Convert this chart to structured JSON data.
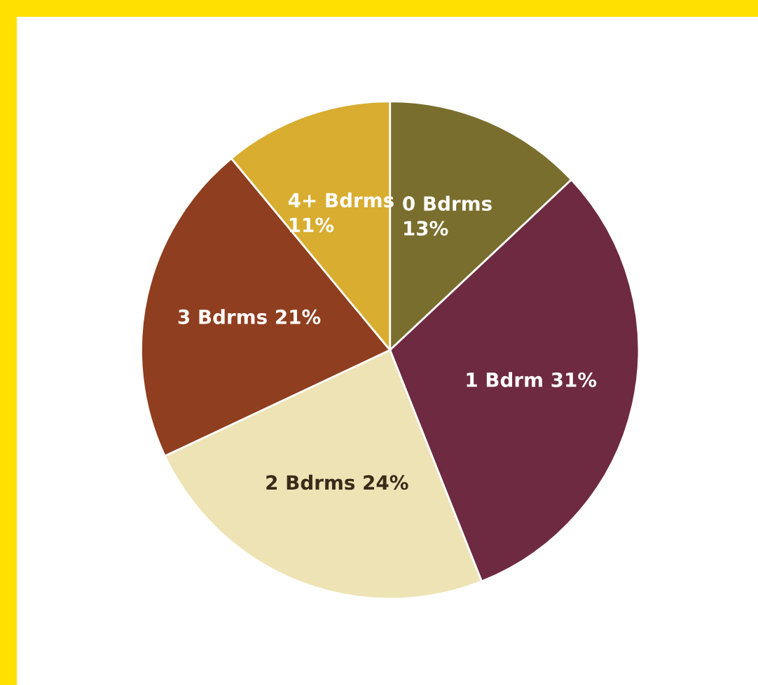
{
  "chart_data": {
    "type": "pie",
    "categories": [
      "0 Bdrms",
      "1 Bdrm",
      "2 Bdrms",
      "3 Bdrms",
      "4+ Bdrms"
    ],
    "values": [
      13,
      31,
      24,
      21,
      11
    ],
    "value_labels": [
      "13%",
      "31%",
      "24%",
      "21%",
      "11%"
    ],
    "colors": [
      "#7a6e2e",
      "#6e2a40",
      "#ede3b4",
      "#8f3e1f",
      "#d8ad30"
    ]
  }
}
